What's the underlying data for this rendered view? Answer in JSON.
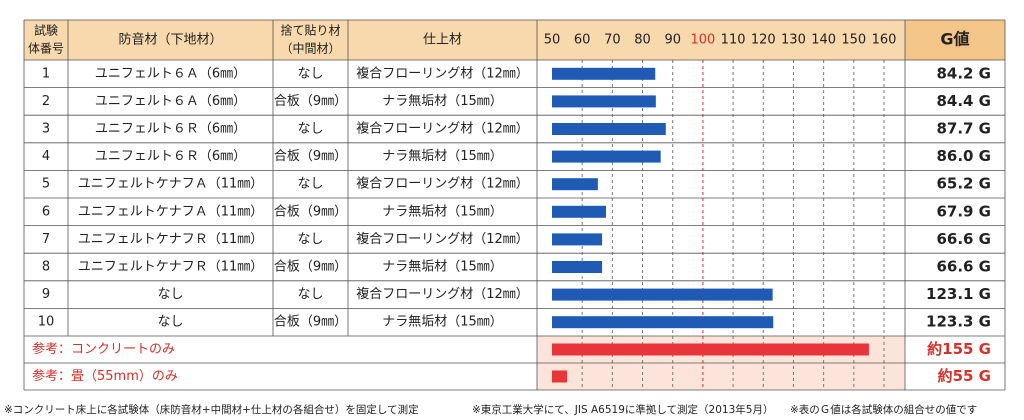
{
  "table": {
    "headers": {
      "no": [
        "試験",
        "体番号"
      ],
      "material": "防音材（下地材）",
      "intermediate": [
        "捨て貼り材",
        "（中間材）"
      ],
      "finish": "仕上材",
      "g": "G値"
    },
    "rows": [
      [
        "1",
        "ユニフェルト６Ａ（6㎜）",
        "なし",
        "複合フローリング材（12㎜）"
      ],
      [
        "2",
        "ユニフェルト６Ａ（6㎜）",
        "合板（9㎜）",
        "ナラ無垢材（15㎜）"
      ],
      [
        "3",
        "ユニフェルト６Ｒ（6㎜）",
        "なし",
        "複合フローリング材（12㎜）"
      ],
      [
        "4",
        "ユニフェルト６Ｒ（6㎜）",
        "合板（9㎜）",
        "ナラ無垢材（15㎜）"
      ],
      [
        "5",
        "ユニフェルトケナフＡ（11㎜）",
        "なし",
        "複合フローリング材（12㎜）"
      ],
      [
        "6",
        "ユニフェルトケナフＡ（11㎜）",
        "合板（9㎜）",
        "ナラ無垢材（15㎜）"
      ],
      [
        "7",
        "ユニフェルトケナフＲ（11㎜）",
        "なし",
        "複合フローリング材（12㎜）"
      ],
      [
        "8",
        "ユニフェルトケナフＲ（11㎜）",
        "合板（9㎜）",
        "ナラ無垢材（15㎜）"
      ],
      [
        "9",
        "なし",
        "なし",
        "複合フローリング材（12㎜）"
      ],
      [
        "10",
        "なし",
        "合板（9㎜）",
        "ナラ無垢材（15㎜）"
      ]
    ],
    "footnotes": [
      "※コンクリート床上に各試験体（床防音材+中間材+仕上材の各組合せ）を固定して測定",
      "※東京工業大学にて、JIS A6519に準拠して測定（2013年5月）",
      "※表のＧ値は各試験体の組合せの値です"
    ]
  },
  "chart_data": {
    "type": "bar",
    "orientation": "horizontal",
    "color": "#1f5bb5",
    "values": [
      84.2,
      84.4,
      87.7,
      86.0,
      65.2,
      67.9,
      66.6,
      66.6,
      123.1,
      123.3
    ],
    "value_labels": [
      "84.2 G",
      "84.4 G",
      "87.7 G",
      "86.0 G",
      "65.2 G",
      "67.9 G",
      "66.6 G",
      "66.6 G",
      "123.1 G",
      "123.3 G"
    ],
    "xlim": [
      50,
      160
    ],
    "xticks": [
      50,
      60,
      70,
      80,
      90,
      100,
      110,
      120,
      130,
      140,
      150,
      160
    ],
    "highlight_tick": 100,
    "highlight_color": "#d8302a",
    "grid": true,
    "reference": {
      "labels": [
        "参考：コンクリートのみ",
        "参考：畳（55mm）のみ"
      ],
      "values": [
        155,
        55
      ],
      "value_labels": [
        "約155 G",
        "約55 G"
      ],
      "color": "#e8353a"
    }
  }
}
